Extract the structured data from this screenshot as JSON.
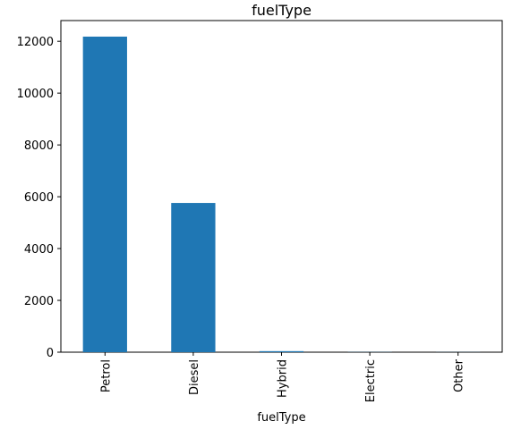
{
  "chart_data": {
    "type": "bar",
    "title": "fuelType",
    "xlabel": "fuelType",
    "ylabel": "",
    "categories": [
      "Petrol",
      "Diesel",
      "Hybrid",
      "Electric",
      "Other"
    ],
    "values": [
      12180,
      5760,
      40,
      6,
      4
    ],
    "ylim": [
      0,
      12800
    ],
    "yticks": [
      0,
      2000,
      4000,
      6000,
      8000,
      10000,
      12000
    ],
    "bar_color": "#1f77b4",
    "grid": false,
    "legend": "none"
  }
}
